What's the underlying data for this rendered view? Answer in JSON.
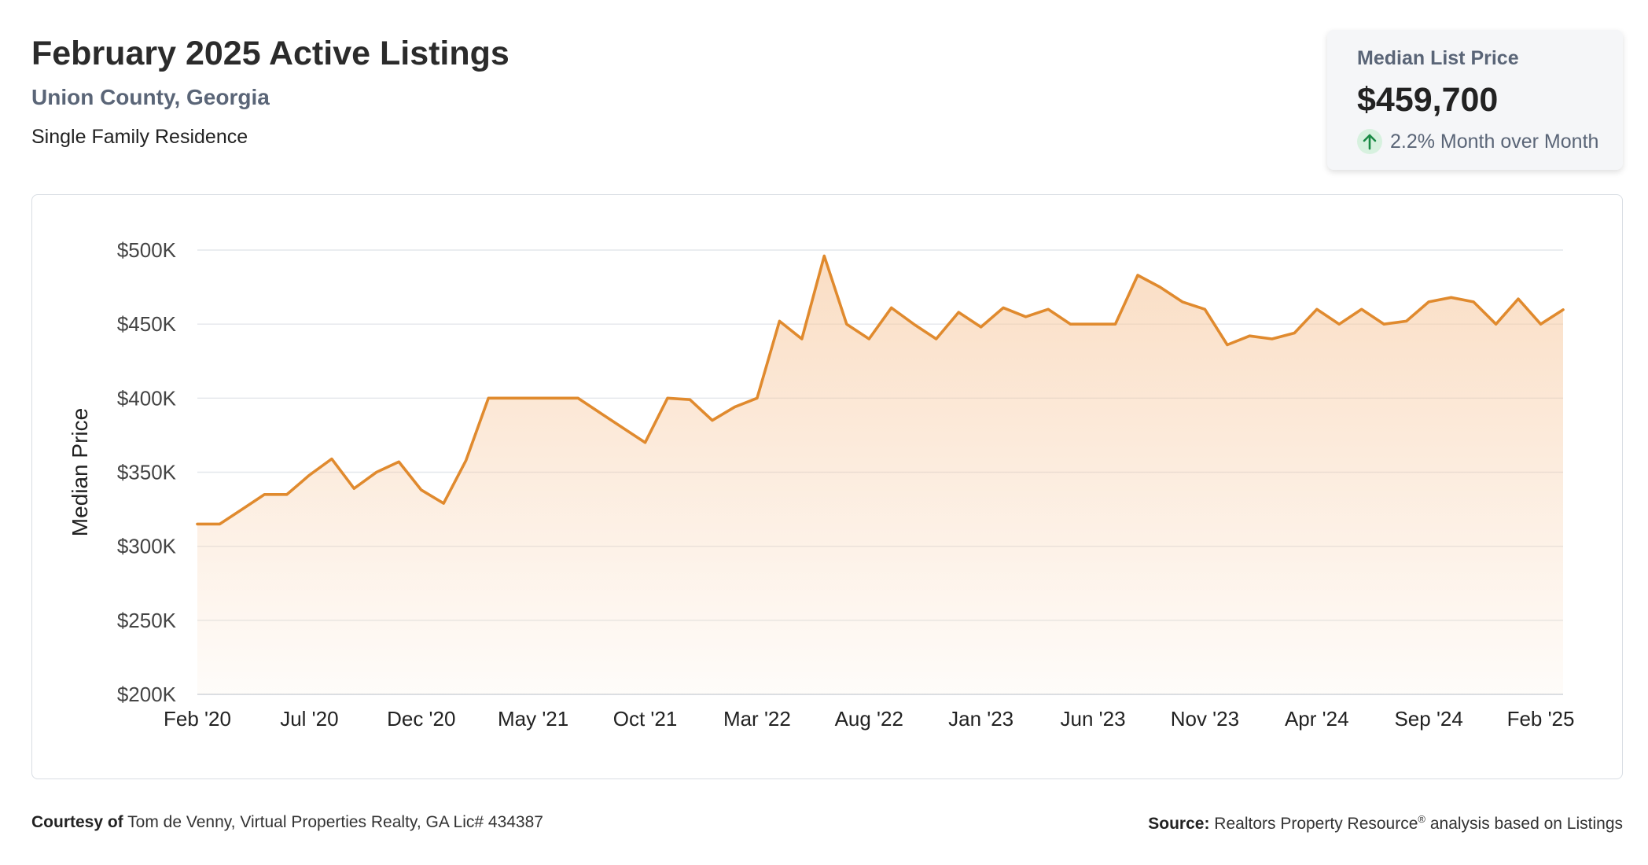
{
  "header": {
    "title": "February 2025 Active Listings",
    "location": "Union County, Georgia",
    "property_type": "Single Family Residence"
  },
  "summary_card": {
    "label": "Median List Price",
    "value": "$459,700",
    "change": "2.2% Month over Month",
    "change_icon": "arrow-up-icon"
  },
  "chart_data": {
    "type": "area",
    "ylabel": "Median Price",
    "ylim": [
      200000,
      500000
    ],
    "yticks": [
      200000,
      250000,
      300000,
      350000,
      400000,
      450000,
      500000
    ],
    "ytick_labels": [
      "$200K",
      "$250K",
      "$300K",
      "$350K",
      "$400K",
      "$450K",
      "$500K"
    ],
    "xtick_labels": [
      "Feb '20",
      "Jul '20",
      "Dec '20",
      "May '21",
      "Oct '21",
      "Mar '22",
      "Aug '22",
      "Jan '23",
      "Jun '23",
      "Nov '23",
      "Apr '24",
      "Sep '24",
      "Feb '25"
    ],
    "grid": true,
    "line_color": "#e08a2e",
    "fill_color": "#f7c9a0",
    "series": [
      {
        "values": [
          315000,
          315000,
          325000,
          335000,
          335000,
          348000,
          359000,
          339000,
          350000,
          357000,
          338000,
          329000,
          358000,
          400000,
          400000,
          400000,
          400000,
          400000,
          390000,
          380000,
          370000,
          400000,
          399000,
          385000,
          394000,
          400000,
          452000,
          440000,
          496000,
          450000,
          440000,
          461000,
          450000,
          440000,
          458000,
          448000,
          461000,
          455000,
          460000,
          450000,
          450000,
          450000,
          483000,
          475000,
          465000,
          460000,
          436000,
          442000,
          440000,
          444000,
          460000,
          450000,
          460000,
          450000,
          452000,
          465000,
          468000,
          465000,
          450000,
          467000,
          450000,
          459700
        ]
      }
    ]
  },
  "footer": {
    "courtesy_label": "Courtesy of",
    "courtesy_text": "Tom de Venny, Virtual Properties Realty, GA Lic# 434387",
    "source_label": "Source:",
    "source_name": "Realtors Property Resource",
    "source_mark": "®",
    "source_text": "analysis based on Listings"
  }
}
